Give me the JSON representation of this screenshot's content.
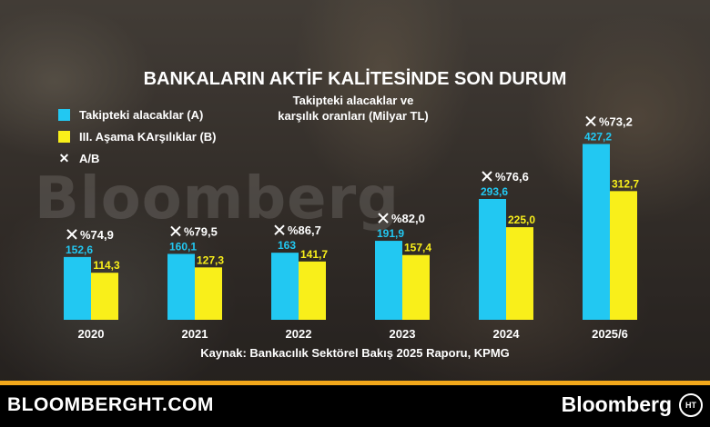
{
  "header": {
    "title": "BANKALARIN AKTİF KALİTESİNDE SON DURUM",
    "subtitle_line1": "Takipteki alacaklar ve",
    "subtitle_line2": "karşılık oranları (Milyar TL)"
  },
  "legend": {
    "items": [
      {
        "label": "Takipteki alacaklar (A)",
        "color": "#22c8f2"
      },
      {
        "label": "III. Aşama KArşılıklar (B)",
        "color": "#f9ef1a"
      },
      {
        "label": "A/B",
        "icon": "x-mark-icon"
      }
    ]
  },
  "watermark": "Bloomberg",
  "chart_data": {
    "type": "bar",
    "categories": [
      "2020",
      "2021",
      "2022",
      "2023",
      "2024",
      "2025/6"
    ],
    "series": [
      {
        "name": "Takipteki alacaklar (A)",
        "color": "#22c8f2",
        "values": [
          152.6,
          160.1,
          163,
          191.9,
          293.6,
          427.2
        ],
        "labels": [
          "152,6",
          "160,1",
          "163",
          "191,9",
          "293,6",
          "427,2"
        ]
      },
      {
        "name": "III. Aşama KArşılıklar (B)",
        "color": "#f9ef1a",
        "values": [
          114.3,
          127.3,
          141.7,
          157.4,
          225.0,
          312.7
        ],
        "labels": [
          "114,3",
          "127,3",
          "141,7",
          "157,4",
          "225,0",
          "312,7"
        ]
      }
    ],
    "ratio": {
      "name": "A/B",
      "values": [
        74.9,
        79.5,
        86.7,
        82.0,
        76.6,
        73.2
      ],
      "labels": [
        "%74,9",
        "%79,5",
        "%86,7",
        "%82,0",
        "%76,6",
        "%73,2"
      ]
    },
    "value_label_colors": {
      "a": "#22c8f2",
      "b": "#f9ef1a"
    }
  },
  "source": "Kaynak: Bankacılık Sektörel Bakış 2025 Raporu, KPMG",
  "footer": {
    "site": "BLOOMBERGHT.COM",
    "brand": "Bloomberg",
    "logo_text": "HT",
    "accent_color": "#f2a81b"
  }
}
